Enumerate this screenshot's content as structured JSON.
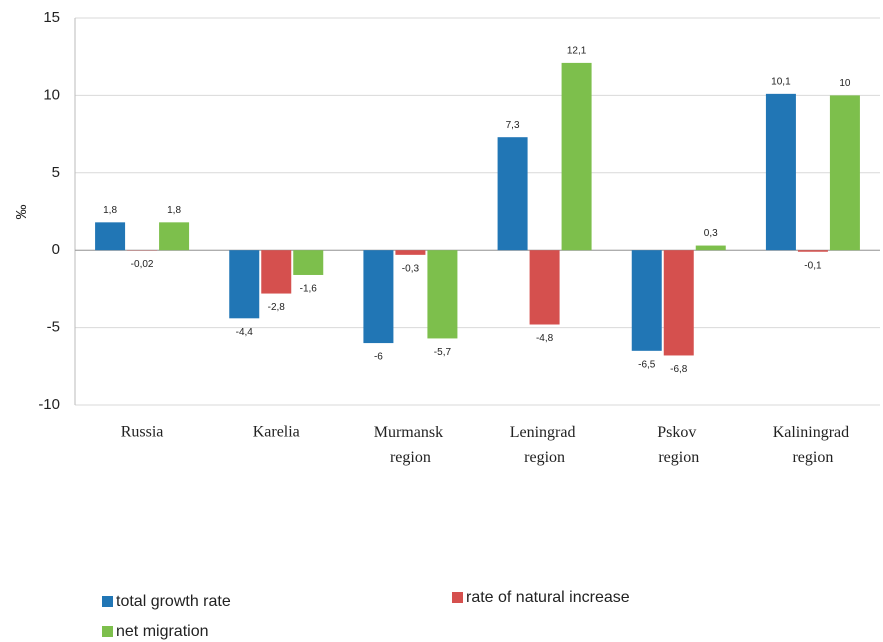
{
  "chart_data": {
    "type": "bar",
    "y_label": "‰",
    "categories": [
      "Russia",
      "Karelia",
      "Murmansk region",
      "Leningrad region",
      "Pskov region",
      "Kaliningrad region"
    ],
    "series": [
      {
        "name": "total growth rate",
        "color": "#2176b5",
        "values": [
          1.8,
          -4.4,
          -6,
          7.3,
          -6.5,
          10.1
        ],
        "value_labels": [
          "1,8",
          "-4,4",
          "-6",
          "7,3",
          "-6,5",
          "10,1"
        ]
      },
      {
        "name": "rate of natural increase",
        "color": "#d5504e",
        "values": [
          -0.02,
          -2.8,
          -0.3,
          -4.8,
          -6.8,
          -0.1
        ],
        "value_labels": [
          "-0,02",
          "-2,8",
          "-0,3",
          "-4,8",
          "-6,8",
          "-0,1"
        ]
      },
      {
        "name": "net migration",
        "color": "#7dbf4c",
        "values": [
          1.8,
          -1.6,
          -5.7,
          12.1,
          0.3,
          10
        ],
        "value_labels": [
          "1,8",
          "-1,6",
          "-5,7",
          "12,1",
          "0,3",
          "10"
        ]
      }
    ],
    "ylim": [
      -10,
      15
    ],
    "yticks": [
      -10,
      -5,
      0,
      5,
      10,
      15
    ],
    "grid": true
  }
}
